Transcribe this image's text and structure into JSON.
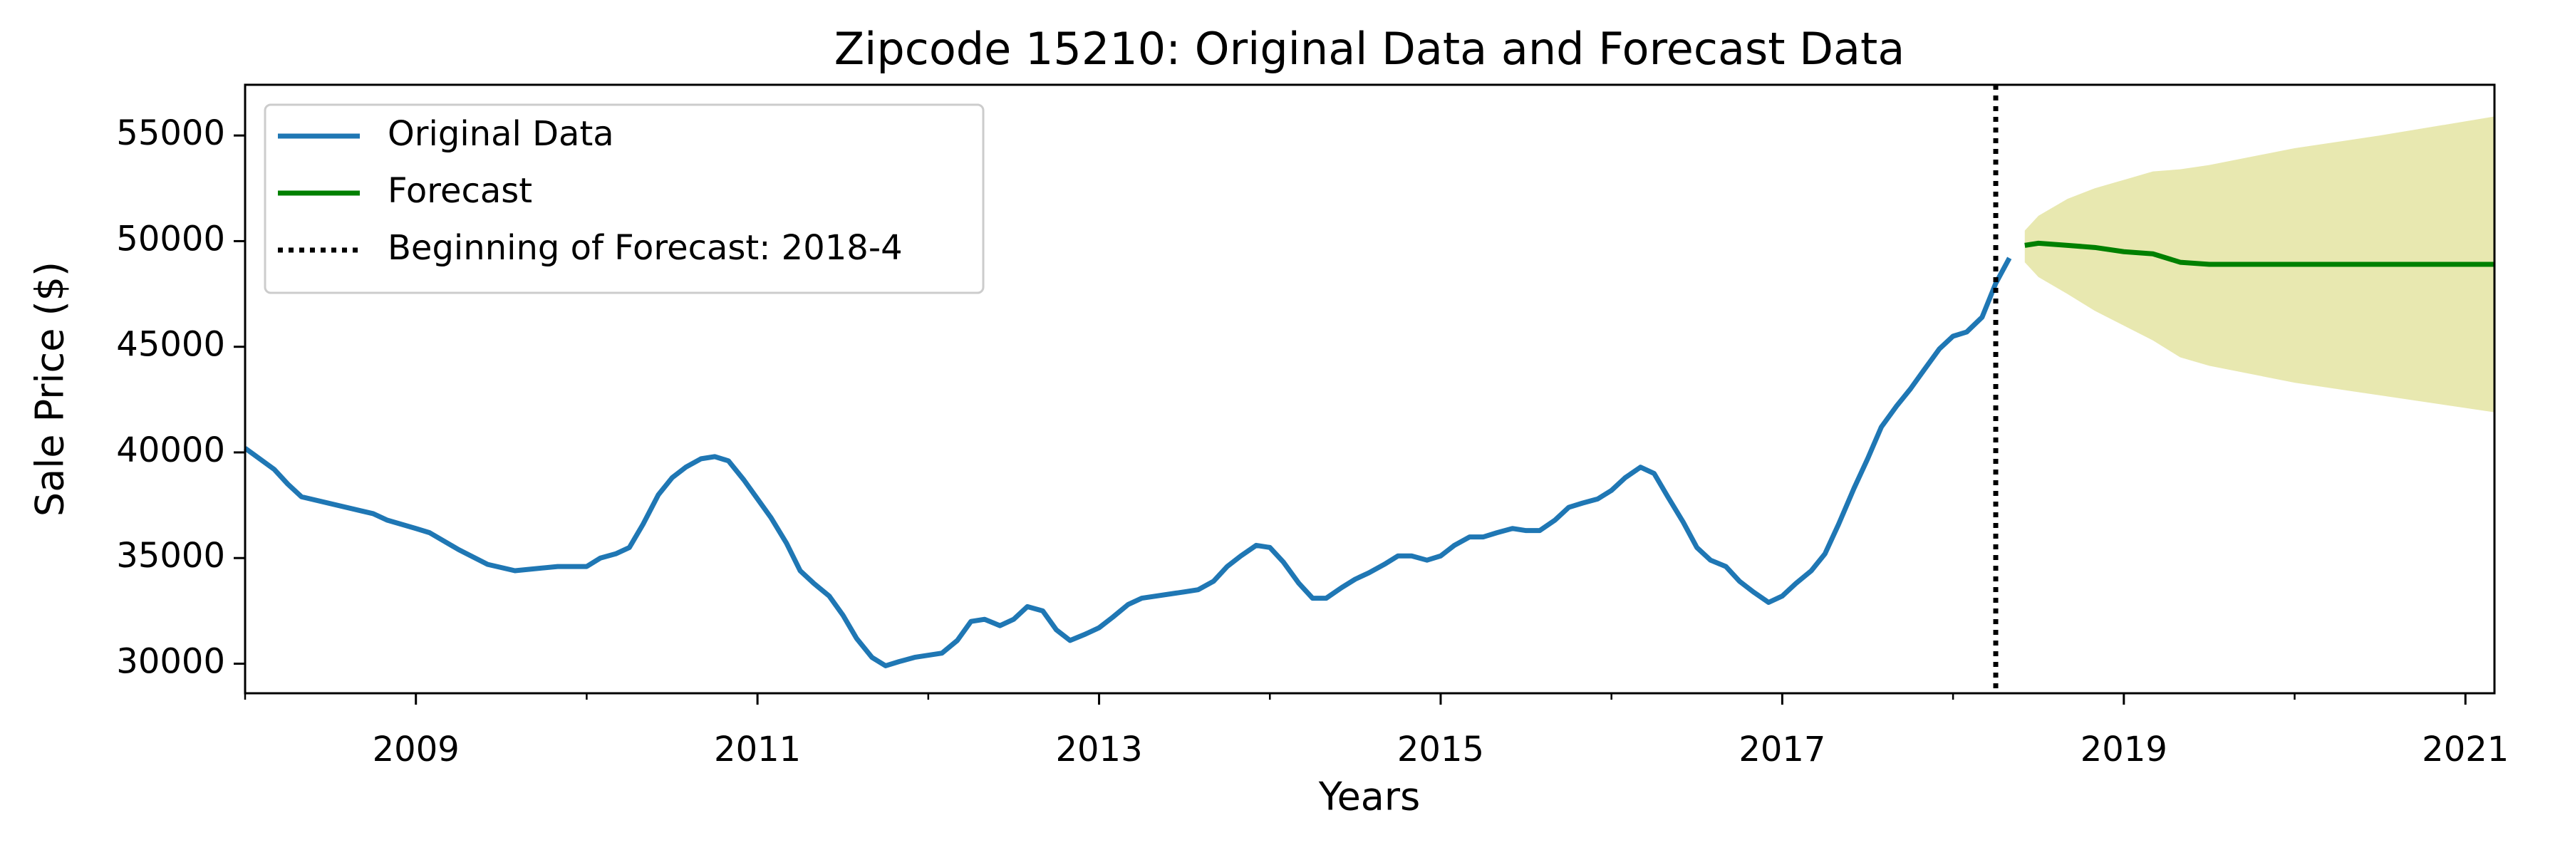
{
  "chart_data": {
    "type": "line",
    "title": "Zipcode 15210: Original Data and Forecast Data",
    "xlabel": "Years",
    "ylabel": "Sale Price ($)",
    "xlim": [
      2008.0,
      2021.17
    ],
    "ylim": [
      28600,
      57400
    ],
    "xticks": [
      2009,
      2011,
      2013,
      2015,
      2017,
      2019,
      2021
    ],
    "xticks_minor": [
      2008,
      2010,
      2012,
      2014,
      2016,
      2018,
      2020
    ],
    "yticks": [
      30000,
      35000,
      40000,
      45000,
      50000,
      55000
    ],
    "legend": "upper left",
    "series": [
      {
        "name": "Original Data",
        "color": "#1f77b4",
        "x": [
          2008.0,
          2008.17,
          2008.25,
          2008.33,
          2008.75,
          2008.83,
          2009.0,
          2009.08,
          2009.25,
          2009.42,
          2009.58,
          2009.83,
          2010.0,
          2010.08,
          2010.17,
          2010.25,
          2010.33,
          2010.42,
          2010.5,
          2010.58,
          2010.67,
          2010.75,
          2010.83,
          2010.92,
          2011.0,
          2011.08,
          2011.17,
          2011.25,
          2011.33,
          2011.42,
          2011.5,
          2011.58,
          2011.67,
          2011.75,
          2011.83,
          2011.92,
          2012.08,
          2012.17,
          2012.25,
          2012.33,
          2012.42,
          2012.5,
          2012.58,
          2012.67,
          2012.75,
          2012.83,
          2012.92,
          2013.0,
          2013.08,
          2013.17,
          2013.25,
          2013.5,
          2013.58,
          2013.67,
          2013.75,
          2013.83,
          2013.92,
          2014.0,
          2014.08,
          2014.17,
          2014.25,
          2014.33,
          2014.42,
          2014.5,
          2014.58,
          2014.67,
          2014.75,
          2014.83,
          2014.92,
          2015.0,
          2015.08,
          2015.17,
          2015.25,
          2015.33,
          2015.42,
          2015.5,
          2015.58,
          2015.67,
          2015.75,
          2015.83,
          2015.92,
          2016.0,
          2016.08,
          2016.17,
          2016.25,
          2016.33,
          2016.42,
          2016.5,
          2016.58,
          2016.67,
          2016.75,
          2016.83,
          2016.92,
          2017.0,
          2017.08,
          2017.17,
          2017.25,
          2017.33,
          2017.42,
          2017.5,
          2017.58,
          2017.67,
          2017.75,
          2017.83,
          2017.92,
          2018.0,
          2018.08,
          2018.17,
          2018.25,
          2018.33
        ],
        "values": [
          40200,
          39200,
          38500,
          37900,
          37100,
          36800,
          36400,
          36200,
          35400,
          34700,
          34400,
          34600,
          34600,
          35000,
          35200,
          35500,
          36600,
          38000,
          38800,
          39300,
          39700,
          39800,
          39600,
          38700,
          37800,
          36900,
          35700,
          34400,
          33800,
          33200,
          32300,
          31200,
          30300,
          29900,
          30100,
          30300,
          30500,
          31100,
          32000,
          32100,
          31800,
          32100,
          32700,
          32500,
          31600,
          31100,
          31400,
          31700,
          32200,
          32800,
          33100,
          33400,
          33500,
          33900,
          34600,
          35100,
          35600,
          35500,
          34800,
          33800,
          33100,
          33100,
          33600,
          34000,
          34300,
          34700,
          35100,
          35100,
          34900,
          35100,
          35600,
          36000,
          36000,
          36200,
          36400,
          36300,
          36300,
          36800,
          37400,
          37600,
          37800,
          38200,
          38800,
          39300,
          39000,
          37900,
          36700,
          35500,
          34900,
          34600,
          33900,
          33400,
          32900,
          33200,
          33800,
          34400,
          35200,
          36600,
          38300,
          39700,
          41200,
          42200,
          43000,
          43900,
          44900,
          45500,
          45700,
          46400,
          48000,
          49200
        ]
      },
      {
        "name": "Forecast",
        "color": "green",
        "band_color": "#e8e8b0",
        "x": [
          2018.42,
          2018.5,
          2018.67,
          2018.83,
          2019.0,
          2019.17,
          2019.33,
          2019.5,
          2020.0,
          2020.5,
          2021.17
        ],
        "values": [
          49800,
          49900,
          49800,
          49700,
          49500,
          49400,
          49000,
          48900,
          48900,
          48900,
          48900
        ],
        "lower": [
          49000,
          48300,
          47500,
          46700,
          46000,
          45300,
          44500,
          44100,
          43300,
          42700,
          41900
        ],
        "upper": [
          50500,
          51200,
          52000,
          52500,
          52900,
          53300,
          53400,
          53600,
          54400,
          55000,
          55900
        ]
      }
    ],
    "vline": {
      "x": 2018.25,
      "label": "Beginning of Forecast: 2018-4",
      "color": "black"
    }
  }
}
